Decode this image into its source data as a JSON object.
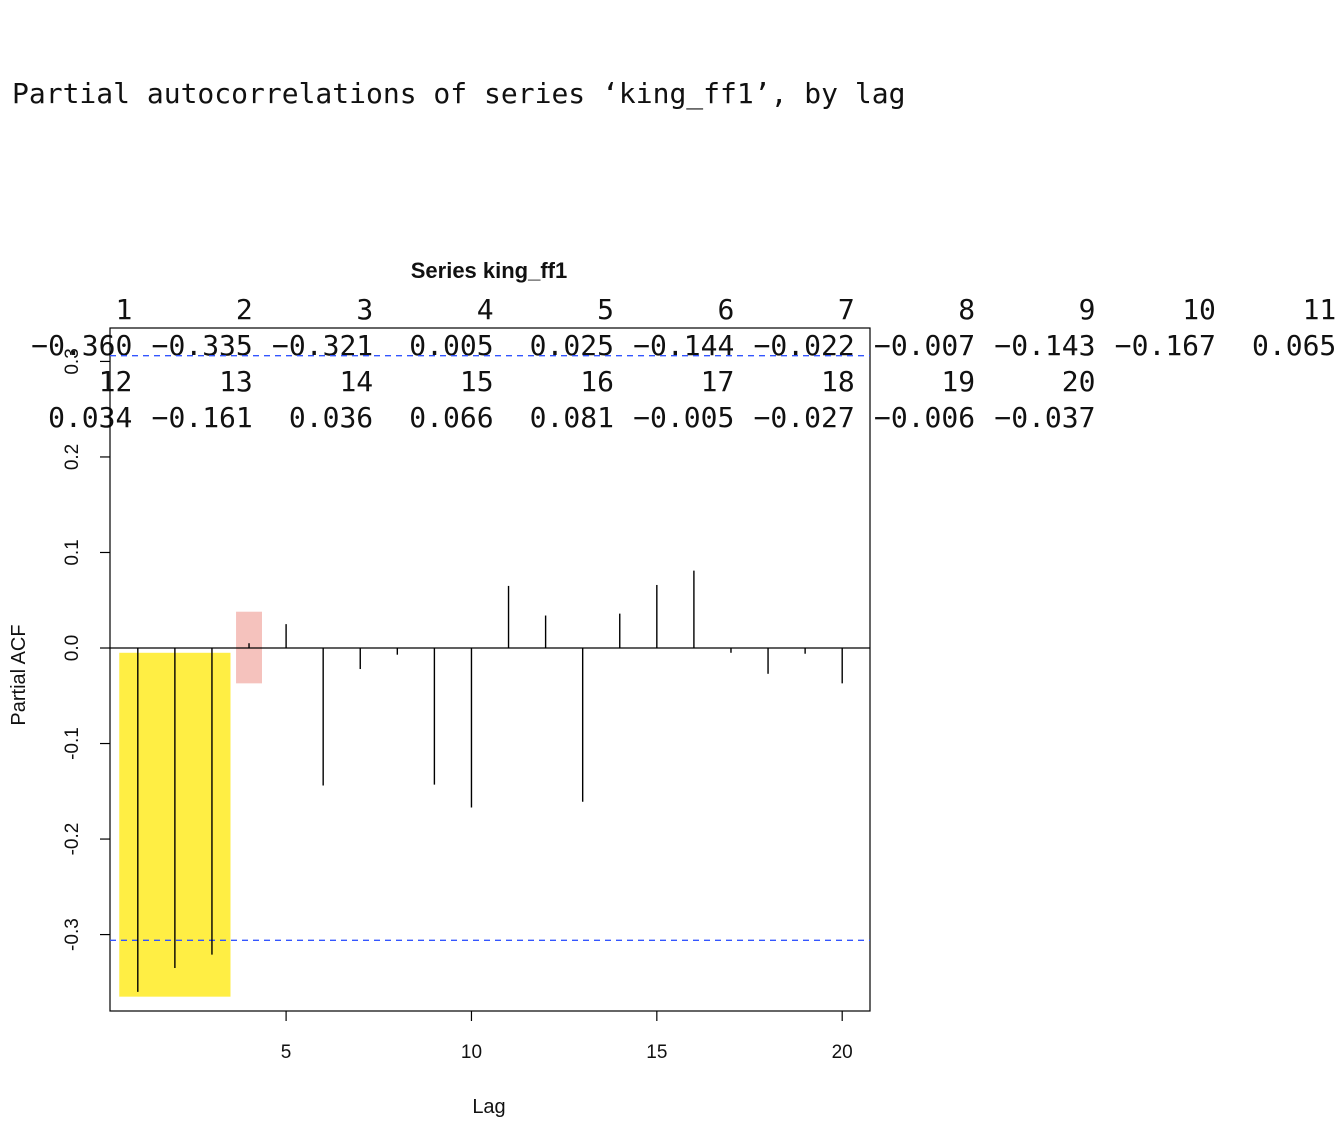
{
  "console": {
    "header": "Partial autocorrelations of series ‘king_ff1’, by lag"
  },
  "chart_data": {
    "type": "bar",
    "title": "Series  king_ff1",
    "xlabel": "Lag",
    "ylabel": "Partial ACF",
    "lags": [
      1,
      2,
      3,
      4,
      5,
      6,
      7,
      8,
      9,
      10,
      11,
      12,
      13,
      14,
      15,
      16,
      17,
      18,
      19,
      20
    ],
    "values": [
      -0.36,
      -0.335,
      -0.321,
      0.005,
      0.025,
      -0.144,
      -0.022,
      -0.007,
      -0.143,
      -0.167,
      0.065,
      0.034,
      -0.161,
      0.036,
      0.066,
      0.081,
      -0.005,
      -0.027,
      -0.006,
      -0.037
    ],
    "value_labels": [
      "-0.360",
      "-0.335",
      "-0.321",
      "0.005",
      "0.025",
      "-0.144",
      "-0.022",
      "-0.007",
      "-0.143",
      "-0.167",
      "0.065",
      "0.034",
      "-0.161",
      "0.036",
      "0.066",
      "0.081",
      "-0.005",
      "-0.027",
      "-0.006",
      "-0.037"
    ],
    "confidence_limit": 0.306,
    "xticks": [
      5,
      10,
      15,
      20
    ],
    "yticks": [
      -0.3,
      -0.2,
      -0.1,
      0.0,
      0.1,
      0.2,
      0.3
    ],
    "ytick_labels": [
      "-0.3",
      "-0.2",
      "-0.1",
      "0.0",
      "0.1",
      "0.2",
      "0.3"
    ],
    "xlim": [
      0.25,
      20.75
    ],
    "ylim": [
      -0.38,
      0.335
    ],
    "highlights": [
      {
        "name": "yellow-highlight",
        "lag_from": 0.5,
        "lag_to": 3.5,
        "value_from": -0.005,
        "value_to": -0.365,
        "color": "#ffee44"
      },
      {
        "name": "pink-highlight",
        "lag_from": 3.65,
        "lag_to": 4.35,
        "value_from": 0.038,
        "value_to": -0.037,
        "color": "#f5c2bd"
      }
    ],
    "colors": {
      "spike": "#000000",
      "ci_line": "#3355ff",
      "frame": "#000000"
    }
  }
}
